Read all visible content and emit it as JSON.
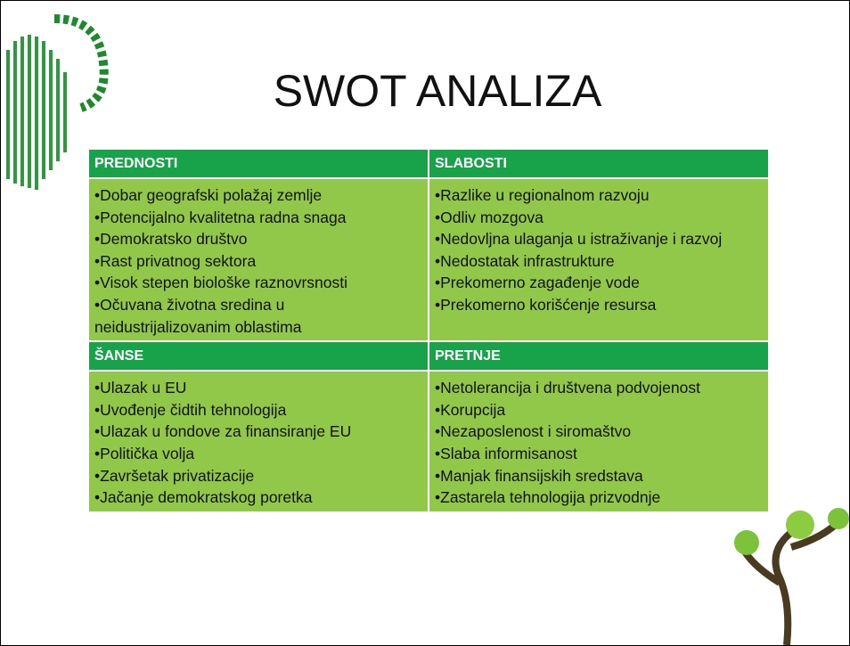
{
  "title": "SWOT ANALIZA",
  "table": {
    "rows": [
      [
        {
          "heading": "PREDNOSTI",
          "items": [
            "•Dobar geografski polažaj zemlje",
            "•Potencijalno kvalitetna radna snaga",
            "•Demokratsko društvo",
            "•Rast privatnog sektora",
            "•Visok stepen biološke raznovrsnosti",
            "•Očuvana životna sredina u neidustrijalizovanim oblastima"
          ]
        },
        {
          "heading": "SLABOSTI",
          "items": [
            "•Razlike u regionalnom razvoju",
            "•Odliv mozgova",
            "•Nedovljna ulaganja u istraživanje i razvoj",
            "•Nedostatak infrastrukture",
            "•Prekomerno zagađenje vode",
            "•Prekomerno korišćenje resursa"
          ]
        }
      ],
      [
        {
          "heading": "ŠANSE",
          "items": [
            "•Ulazak u EU",
            "•Uvođenje čidtih tehnologija",
            "•Ulazak u fondove za finansiranje EU",
            "•Politička volja",
            "•Završetak privatizacije",
            "•Jačanje demokratskog poretka"
          ]
        },
        {
          "heading": "PRETNJE",
          "items": [
            "•Netolerancija i društvena podvojenost",
            "•Korupcija",
            "•Nezaposlenost i siromaštvo",
            "•Slaba informisanost",
            "•Manjak finansijskih sredstava",
            "•Zastarela tehnologija prizvodnje"
          ]
        }
      ]
    ]
  }
}
